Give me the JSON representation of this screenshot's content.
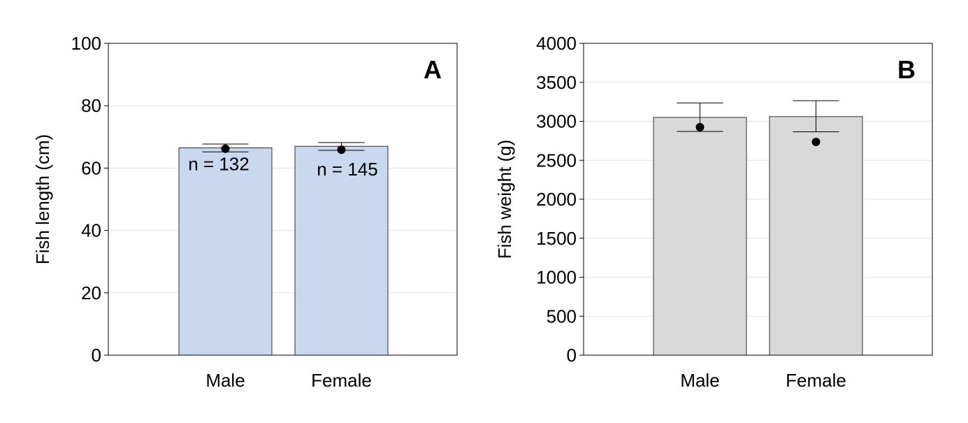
{
  "chart_data": [
    {
      "type": "bar",
      "panel_label": "A",
      "title": "",
      "xlabel": "",
      "ylabel": "Fish length (cm)",
      "categories": [
        "Male",
        "Female"
      ],
      "values": [
        66.5,
        67.0
      ],
      "error_upper": [
        67.7,
        68.2
      ],
      "error_lower": [
        65.2,
        65.7
      ],
      "points": [
        66.2,
        65.9
      ],
      "annotations": [
        "n = 132",
        "n = 145"
      ],
      "ylim": [
        0,
        100
      ],
      "yticks": [
        0,
        20,
        40,
        60,
        80,
        100
      ],
      "yticklabels": [
        "0",
        "20",
        "40",
        "60",
        "80",
        "100"
      ],
      "grid": true,
      "bar_color": "#c7d8ef"
    },
    {
      "type": "bar",
      "panel_label": "B",
      "title": "",
      "xlabel": "",
      "ylabel": "Fish weight (g)",
      "categories": [
        "Male",
        "Female"
      ],
      "values": [
        3050,
        3060
      ],
      "error_upper": [
        3235,
        3265
      ],
      "error_lower": [
        2870,
        2865
      ],
      "points": [
        2925,
        2735
      ],
      "annotations": [
        "",
        ""
      ],
      "ylim": [
        0,
        4000
      ],
      "yticks": [
        0,
        500,
        1000,
        1500,
        2000,
        2500,
        3000,
        3500,
        4000
      ],
      "yticklabels": [
        "0",
        "500",
        "1000",
        "1500",
        "2000",
        "2500",
        "3000",
        "3500",
        "4000"
      ],
      "grid": true,
      "bar_color": "#d9d9d9"
    }
  ]
}
